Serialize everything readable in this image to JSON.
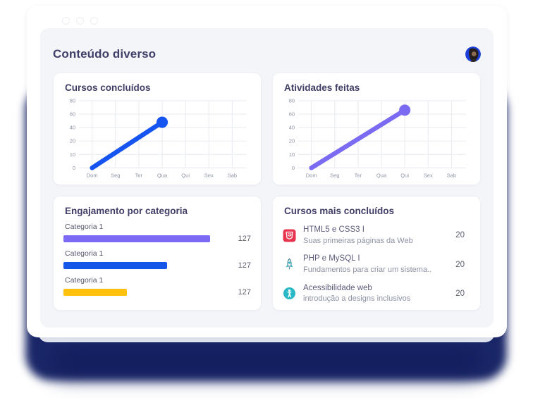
{
  "header": {
    "title": "Conteúdo diverso"
  },
  "window": {
    "controls": [
      "minimize",
      "maximize",
      "close"
    ]
  },
  "colors": {
    "accent_blue": "#1554F0",
    "accent_purple": "#7A6BF2",
    "bar_purple": "#7C6AF5",
    "bar_blue": "#1457E9",
    "bar_yellow": "#FFC10D",
    "title_text": "#413F68",
    "panel_bg": "#F3F5F9",
    "glow_navy": "#1A2768",
    "icon_red": "#E8344F",
    "icon_teal": "#29B9C6"
  },
  "chart_data": [
    {
      "id": "cursos_concluidos",
      "type": "line",
      "title": "Cursos concluídos",
      "x_categories": [
        "Dom",
        "Seg",
        "Ter",
        "Qua",
        "Qui",
        "Sex",
        "Sab"
      ],
      "y_ticks": [
        0,
        10,
        20,
        40,
        60,
        80
      ],
      "grid": true,
      "series": [
        {
          "name": "Cursos concluídos",
          "color": "#1554F0",
          "values": [
            0,
            null,
            null,
            48,
            null,
            null,
            null
          ]
        }
      ],
      "endpoint": {
        "x": "Qua",
        "value": 48
      }
    },
    {
      "id": "atividades_feitas",
      "type": "line",
      "title": "Atividades feitas",
      "x_categories": [
        "Dom",
        "Seg",
        "Ter",
        "Qua",
        "Qui",
        "Sex",
        "Sab"
      ],
      "y_ticks": [
        0,
        10,
        20,
        40,
        60,
        80
      ],
      "grid": true,
      "series": [
        {
          "name": "Atividades feitas",
          "color": "#7A6BF2",
          "values": [
            0,
            null,
            null,
            null,
            66,
            null,
            null
          ]
        }
      ],
      "endpoint": {
        "x": "Qui",
        "value": 66
      }
    },
    {
      "id": "engajamento_por_categoria",
      "type": "bar",
      "title": "Engajamento por categoria",
      "bars": [
        {
          "label": "Categoria 1",
          "value": 127,
          "color": "#7C6AF5",
          "width_pct": 92
        },
        {
          "label": "Categoria 1",
          "value": 127,
          "color": "#1457E9",
          "width_pct": 65
        },
        {
          "label": "Categoria 1",
          "value": 127,
          "color": "#FFC10D",
          "width_pct": 40
        }
      ]
    },
    {
      "id": "cursos_mais_concluidos",
      "type": "table",
      "title": "Cursos mais concluídos",
      "items": [
        {
          "icon": "html5-icon",
          "title": "HTML5 e CSS3 I",
          "subtitle": "Suas primeiras páginas da Web",
          "count": 20
        },
        {
          "icon": "rocket-icon",
          "title": "PHP e MySQL I",
          "subtitle": "Fundamentos para criar um sistema..",
          "count": 20
        },
        {
          "icon": "accessibility-icon",
          "title": "Acessibilidade web",
          "subtitle": "introdução a designs inclusivos",
          "count": 20
        }
      ]
    }
  ]
}
